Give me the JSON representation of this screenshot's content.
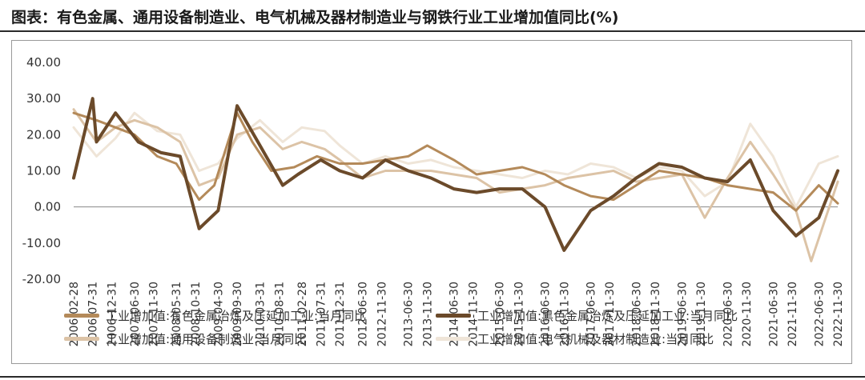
{
  "title": "图表：有色金属、通用设备制造业、电气机械及器材制造业与钢铁行业工业增加值同比(%)",
  "colors": {
    "s1": "#b48a5a",
    "s2": "#6b4a2a",
    "s3": "#dcc3a6",
    "s4": "#efe5d8",
    "axis": "#888888",
    "text": "#333333"
  },
  "chart_data": {
    "type": "line",
    "ylim": [
      -20,
      40
    ],
    "yticks": [
      "40.00",
      "30.00",
      "20.00",
      "10.00",
      "0.00",
      "-10.00",
      "-20.00"
    ],
    "ytick_values": [
      40,
      30,
      20,
      10,
      0,
      -10,
      -20
    ],
    "x_range": [
      "2006-02-28",
      "2022-11-30"
    ],
    "xticks": [
      "2006-02-28",
      "2006-07-31",
      "2006-12-31",
      "2007-06-30",
      "2007-11-30",
      "2008-05-31",
      "2008-10-31",
      "2009-04-30",
      "2009-09-30",
      "2010-03-31",
      "2010-08-31",
      "2011-02-28",
      "2011-07-31",
      "2011-12-31",
      "2012-06-30",
      "2012-11-30",
      "2013-06-30",
      "2013-11-30",
      "2014-06-30",
      "2014-11-30",
      "2015-06-30",
      "2015-11-30",
      "2016-06-30",
      "2016-11-30",
      "2017-06-30",
      "2017-11-30",
      "2018-06-30",
      "2018-11-30",
      "2019-06-30",
      "2019-11-30",
      "2020-06-30",
      "2020-11-30",
      "2021-06-30",
      "2021-11-30",
      "2022-06-30",
      "2022-11-30"
    ],
    "series": [
      {
        "name": "工业增加值:有色金属冶炼及压延加工业:当月同比",
        "color_key": "s1",
        "x": [
          "2006-02",
          "2006-08",
          "2007-01",
          "2007-06",
          "2007-12",
          "2008-05",
          "2008-11",
          "2009-03",
          "2009-09",
          "2010-01",
          "2010-06",
          "2010-12",
          "2011-06",
          "2011-12",
          "2012-06",
          "2012-12",
          "2013-06",
          "2013-11",
          "2014-06",
          "2014-12",
          "2015-06",
          "2015-12",
          "2016-06",
          "2016-11",
          "2017-06",
          "2017-12",
          "2018-06",
          "2018-12",
          "2019-06",
          "2019-12",
          "2020-06",
          "2020-12",
          "2021-06",
          "2021-12",
          "2022-06",
          "2022-11"
        ],
        "y": [
          26,
          24,
          22,
          20,
          14,
          12,
          2,
          6,
          26,
          18,
          10,
          11,
          14,
          12,
          12,
          13,
          14,
          17,
          13,
          9,
          10,
          11,
          9,
          6,
          3,
          2,
          6,
          10,
          9,
          8,
          6,
          5,
          4,
          -1,
          6,
          1
        ]
      },
      {
        "name": "工业增加值:黑色金属冶炼及压延加工业:当月同比",
        "color_key": "s2",
        "x": [
          "2006-02",
          "2006-07",
          "2006-08",
          "2007-01",
          "2007-07",
          "2008-01",
          "2008-06",
          "2008-11",
          "2009-04",
          "2009-09",
          "2010-03",
          "2010-09",
          "2011-01",
          "2011-07",
          "2011-12",
          "2012-06",
          "2012-12",
          "2013-06",
          "2013-12",
          "2014-06",
          "2014-12",
          "2015-06",
          "2015-12",
          "2016-06",
          "2016-11",
          "2017-06",
          "2017-12",
          "2018-06",
          "2018-12",
          "2019-06",
          "2019-12",
          "2020-06",
          "2020-12",
          "2021-06",
          "2021-12",
          "2022-06",
          "2022-11"
        ],
        "y": [
          8,
          30,
          18,
          26,
          18,
          15,
          14,
          -6,
          -1,
          28,
          17,
          6,
          9,
          13,
          10,
          8,
          13,
          10,
          8,
          5,
          4,
          5,
          5,
          0,
          -12,
          -1,
          3,
          8,
          12,
          11,
          8,
          7,
          13,
          -1,
          -8,
          -3,
          10
        ]
      },
      {
        "name": "工业增加值:通用设备制造业:当月同比",
        "color_key": "s3",
        "x": [
          "2006-02",
          "2006-08",
          "2007-01",
          "2007-06",
          "2007-12",
          "2008-06",
          "2008-11",
          "2009-04",
          "2009-09",
          "2010-03",
          "2010-09",
          "2011-02",
          "2011-08",
          "2011-12",
          "2012-06",
          "2012-12",
          "2013-06",
          "2013-12",
          "2014-06",
          "2014-12",
          "2015-06",
          "2015-12",
          "2016-06",
          "2016-12",
          "2017-06",
          "2017-12",
          "2018-06",
          "2018-12",
          "2019-06",
          "2019-12",
          "2020-06",
          "2020-12",
          "2021-06",
          "2021-12",
          "2022-04",
          "2022-11"
        ],
        "y": [
          27,
          18,
          22,
          24,
          22,
          18,
          6,
          8,
          20,
          22,
          16,
          18,
          16,
          13,
          8,
          10,
          10,
          10,
          9,
          8,
          4,
          5,
          6,
          8,
          9,
          10,
          7,
          8,
          9,
          -3,
          8,
          18,
          9,
          -1,
          -15,
          7
        ]
      },
      {
        "name": "工业增加值:电气机械及器材制造业:当月同比",
        "color_key": "s4",
        "x": [
          "2006-02",
          "2006-08",
          "2007-01",
          "2007-06",
          "2007-12",
          "2008-06",
          "2008-11",
          "2009-04",
          "2009-09",
          "2010-03",
          "2010-09",
          "2011-02",
          "2011-08",
          "2011-12",
          "2012-06",
          "2012-12",
          "2013-06",
          "2013-12",
          "2014-06",
          "2014-12",
          "2015-06",
          "2015-12",
          "2016-06",
          "2016-12",
          "2017-06",
          "2017-12",
          "2018-06",
          "2018-12",
          "2019-06",
          "2019-12",
          "2020-06",
          "2020-12",
          "2021-06",
          "2021-12",
          "2022-06",
          "2022-11"
        ],
        "y": [
          22,
          14,
          19,
          26,
          21,
          20,
          10,
          12,
          19,
          24,
          18,
          22,
          21,
          17,
          12,
          14,
          12,
          13,
          11,
          10,
          9,
          8,
          10,
          9,
          12,
          11,
          8,
          11,
          10,
          3,
          7,
          23,
          14,
          0,
          12,
          14
        ]
      }
    ]
  }
}
